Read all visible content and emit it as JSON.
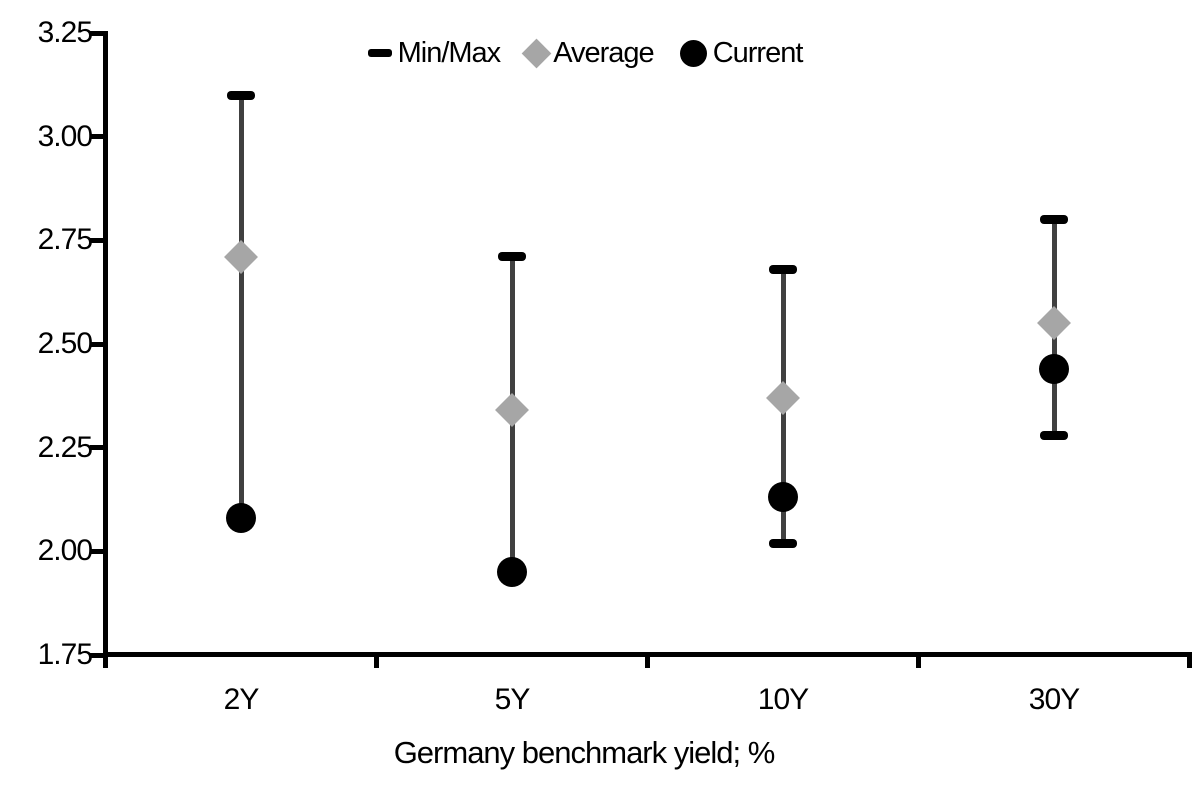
{
  "chart_data": {
    "type": "scatter",
    "subtype": "min-max-range-dot-plot",
    "title": "",
    "xlabel": "Germany benchmark yield; %",
    "ylabel": "",
    "categories": [
      "2Y",
      "5Y",
      "10Y",
      "30Y"
    ],
    "series": [
      {
        "name": "Min/Max",
        "marker": "dash",
        "min": [
          2.08,
          1.95,
          2.02,
          2.28
        ],
        "max": [
          3.1,
          2.71,
          2.68,
          2.8
        ]
      },
      {
        "name": "Average",
        "marker": "diamond",
        "values": [
          2.71,
          2.34,
          2.37,
          2.55
        ]
      },
      {
        "name": "Current",
        "marker": "circle",
        "values": [
          2.08,
          1.95,
          2.13,
          2.44
        ]
      }
    ],
    "ylim": [
      1.75,
      3.25
    ],
    "ytick_step": 0.25,
    "yticks": [
      "3.25",
      "3.00",
      "2.75",
      "2.50",
      "2.25",
      "2.00",
      "1.75"
    ],
    "legend_position": "top-center",
    "grid": false,
    "colors": {
      "range_line": "#404040",
      "min_max_cap": "#000000",
      "average": "#a6a6a6",
      "current": "#000000",
      "axis": "#000000",
      "text": "#000000"
    }
  }
}
